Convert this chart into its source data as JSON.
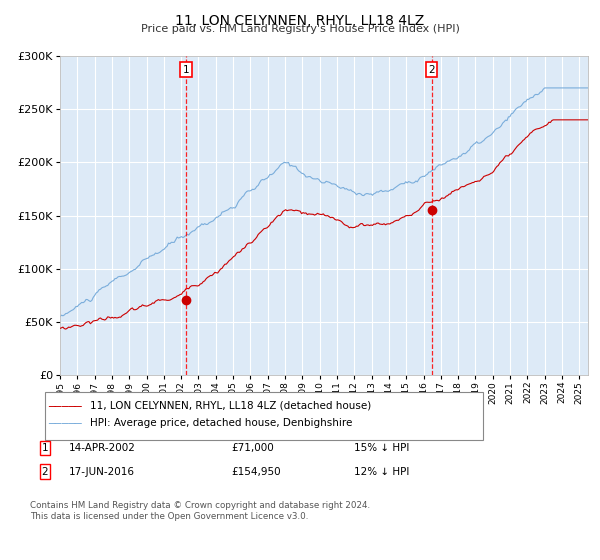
{
  "title": "11, LON CELYNNEN, RHYL, LL18 4LZ",
  "subtitle": "Price paid vs. HM Land Registry's House Price Index (HPI)",
  "legend_line1": "11, LON CELYNNEN, RHYL, LL18 4LZ (detached house)",
  "legend_line2": "HPI: Average price, detached house, Denbighshire",
  "annotation1_date": "14-APR-2002",
  "annotation1_price": "£71,000",
  "annotation1_hpi": "15% ↓ HPI",
  "annotation1_year": 2002.29,
  "annotation1_value": 71000,
  "annotation2_date": "17-JUN-2016",
  "annotation2_price": "£154,950",
  "annotation2_hpi": "12% ↓ HPI",
  "annotation2_year": 2016.46,
  "annotation2_value": 154950,
  "line_red_color": "#cc0000",
  "line_blue_color": "#7aaddb",
  "bg_color": "#ddeaf7",
  "grid_color": "#ffffff",
  "ylim": [
    0,
    300000
  ],
  "xlim_start": 1995.0,
  "xlim_end": 2025.5,
  "footer": "Contains HM Land Registry data © Crown copyright and database right 2024.\nThis data is licensed under the Open Government Licence v3.0."
}
